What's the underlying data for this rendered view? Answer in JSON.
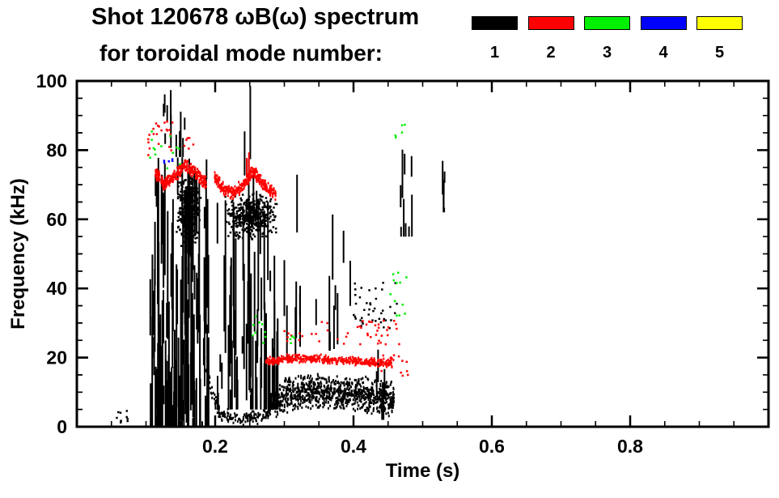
{
  "title": {
    "line1": "Shot 120678 ωB(ω) spectrum",
    "line2": "for toroidal mode number:"
  },
  "legend": {
    "entries": [
      {
        "label": "1",
        "color": "#000000"
      },
      {
        "label": "2",
        "color": "#ff0000"
      },
      {
        "label": "3",
        "color": "#00ee00"
      },
      {
        "label": "4",
        "color": "#0000ff"
      },
      {
        "label": "5",
        "color": "#ffff00"
      }
    ]
  },
  "chart_data": {
    "type": "scatter",
    "title": "Shot 120678 ωB(ω) spectrum for toroidal mode number",
    "xlabel": "Time (s)",
    "ylabel": "Frequency (kHz)",
    "xlim": [
      0,
      1.0
    ],
    "ylim": [
      0,
      100
    ],
    "xticks": [
      0.2,
      0.4,
      0.6,
      0.8
    ],
    "xtick_labels": [
      "0.2",
      "0.4",
      "0.6",
      "0.8"
    ],
    "xminor": 0.05,
    "yticks": [
      0,
      20,
      40,
      60,
      80,
      100
    ],
    "ytick_labels": [
      "0",
      "20",
      "40",
      "60",
      "80",
      "100"
    ],
    "yminor": 5,
    "grid": false,
    "legend_position": "top-right",
    "series": [
      {
        "name": "n=1",
        "mode": 1,
        "color": "#000000",
        "clusters": [
          {
            "type": "scatter",
            "t": [
              0.055,
              0.072
            ],
            "f": [
              1,
              5
            ],
            "count": 10
          },
          {
            "type": "columns",
            "t": [
              0.105,
              0.19
            ],
            "f": [
              0,
              78
            ],
            "count": 150,
            "seg": [
              3,
              45
            ]
          },
          {
            "type": "columns",
            "t": [
              0.124,
              0.158
            ],
            "f": [
              78,
              100
            ],
            "count": 12,
            "seg": [
              3,
              16
            ]
          },
          {
            "type": "blob",
            "t": [
              0.142,
              0.178
            ],
            "f": [
              52,
              75
            ],
            "count": 380
          },
          {
            "type": "columns",
            "t": [
              0.198,
              0.29
            ],
            "f": [
              5,
              66
            ],
            "count": 70,
            "seg": [
              4,
              40
            ]
          },
          {
            "type": "columns",
            "t": [
              0.228,
              0.262
            ],
            "f": [
              60,
              100
            ],
            "count": 6,
            "seg": [
              5,
              28
            ]
          },
          {
            "type": "blob",
            "t": [
              0.212,
              0.29
            ],
            "f": [
              54,
              68
            ],
            "count": 450
          },
          {
            "type": "band",
            "path": [
              [
                0.183,
                20
              ],
              [
                0.193,
                11
              ],
              [
                0.205,
                4.5
              ],
              [
                0.222,
                2.8
              ],
              [
                0.25,
                2.8
              ],
              [
                0.268,
                3.5
              ],
              [
                0.283,
                6
              ]
            ],
            "thickness": 2.2,
            "count": 170
          },
          {
            "type": "band",
            "path": [
              [
                0.283,
                7
              ],
              [
                0.3,
                9.5
              ],
              [
                0.33,
                10.5
              ],
              [
                0.36,
                10.5
              ],
              [
                0.39,
                10
              ],
              [
                0.42,
                9.5
              ],
              [
                0.45,
                8.5
              ],
              [
                0.458,
                8
              ]
            ],
            "thickness": 5.5,
            "count": 950
          },
          {
            "type": "columns",
            "t": [
              0.295,
              0.325
            ],
            "f": [
              20,
              86
            ],
            "count": 7,
            "seg": [
              4,
              20
            ]
          },
          {
            "type": "columns",
            "t": [
              0.335,
              0.4
            ],
            "f": [
              22,
              65
            ],
            "count": 9,
            "seg": [
              4,
              22
            ]
          },
          {
            "type": "scatter",
            "t": [
              0.398,
              0.462
            ],
            "f": [
              28,
              42
            ],
            "count": 42
          },
          {
            "type": "columns",
            "t": [
              0.432,
              0.448
            ],
            "f": [
              2,
              26
            ],
            "count": 6,
            "seg": [
              4,
              16
            ]
          },
          {
            "type": "columns",
            "t": [
              0.462,
              0.488
            ],
            "f": [
              55,
              82
            ],
            "count": 9,
            "seg": [
              3,
              15
            ]
          },
          {
            "type": "columns",
            "t": [
              0.518,
              0.538
            ],
            "f": [
              62,
              79
            ],
            "count": 6,
            "seg": [
              3,
              10
            ]
          }
        ]
      },
      {
        "name": "n=2",
        "mode": 2,
        "color": "#ff0000",
        "clusters": [
          {
            "type": "scatter",
            "t": [
              0.098,
              0.138
            ],
            "f": [
              78,
              90
            ],
            "count": 22
          },
          {
            "type": "band",
            "path": [
              [
                0.112,
                74
              ],
              [
                0.125,
                70.5
              ],
              [
                0.14,
                73
              ],
              [
                0.155,
                76
              ],
              [
                0.17,
                74
              ],
              [
                0.186,
                70.5
              ]
            ],
            "thickness": 2.2,
            "count": 300
          },
          {
            "type": "band",
            "path": [
              [
                0.198,
                72
              ],
              [
                0.212,
                69
              ],
              [
                0.227,
                68
              ],
              [
                0.242,
                71
              ],
              [
                0.253,
                74
              ],
              [
                0.263,
                72
              ],
              [
                0.274,
                69
              ],
              [
                0.287,
                67.5
              ]
            ],
            "thickness": 2.2,
            "count": 340
          },
          {
            "type": "columns",
            "t": [
              0.243,
              0.249
            ],
            "f": [
              72,
              80
            ],
            "count": 3,
            "seg": [
              3,
              7
            ]
          },
          {
            "type": "band",
            "path": [
              [
                0.272,
                19
              ],
              [
                0.3,
                20
              ],
              [
                0.34,
                20
              ],
              [
                0.38,
                19.5
              ],
              [
                0.42,
                19
              ],
              [
                0.457,
                18.5
              ]
            ],
            "thickness": 1.4,
            "count": 430
          },
          {
            "type": "scatter",
            "t": [
              0.335,
              0.465
            ],
            "f": [
              24,
              31
            ],
            "count": 40
          },
          {
            "type": "scatter",
            "t": [
              0.297,
              0.325
            ],
            "f": [
              25,
              29
            ],
            "count": 8
          },
          {
            "type": "scatter",
            "t": [
              0.438,
              0.478
            ],
            "f": [
              15,
              21
            ],
            "count": 14
          },
          {
            "type": "scatter",
            "t": [
              0.152,
              0.168
            ],
            "f": [
              79,
              84
            ],
            "count": 6
          }
        ]
      },
      {
        "name": "n=3",
        "mode": 3,
        "color": "#00ee00",
        "clusters": [
          {
            "type": "scatter",
            "t": [
              0.1,
              0.148
            ],
            "f": [
              74,
              86
            ],
            "count": 13
          },
          {
            "type": "scatter",
            "t": [
              0.248,
              0.272
            ],
            "f": [
              24,
              33
            ],
            "count": 9
          },
          {
            "type": "scatter",
            "t": [
              0.3,
              0.314
            ],
            "f": [
              23,
              27
            ],
            "count": 4
          },
          {
            "type": "scatter",
            "t": [
              0.448,
              0.478
            ],
            "f": [
              32,
              47
            ],
            "count": 13
          },
          {
            "type": "scatter",
            "t": [
              0.458,
              0.474
            ],
            "f": [
              83,
              88
            ],
            "count": 5
          }
        ]
      },
      {
        "name": "n=4",
        "mode": 4,
        "color": "#0000ff",
        "clusters": [
          {
            "type": "scatter",
            "t": [
              0.118,
              0.138
            ],
            "f": [
              75,
              80
            ],
            "count": 5
          }
        ]
      },
      {
        "name": "n=5",
        "mode": 5,
        "color": "#ffff00",
        "clusters": []
      }
    ]
  }
}
